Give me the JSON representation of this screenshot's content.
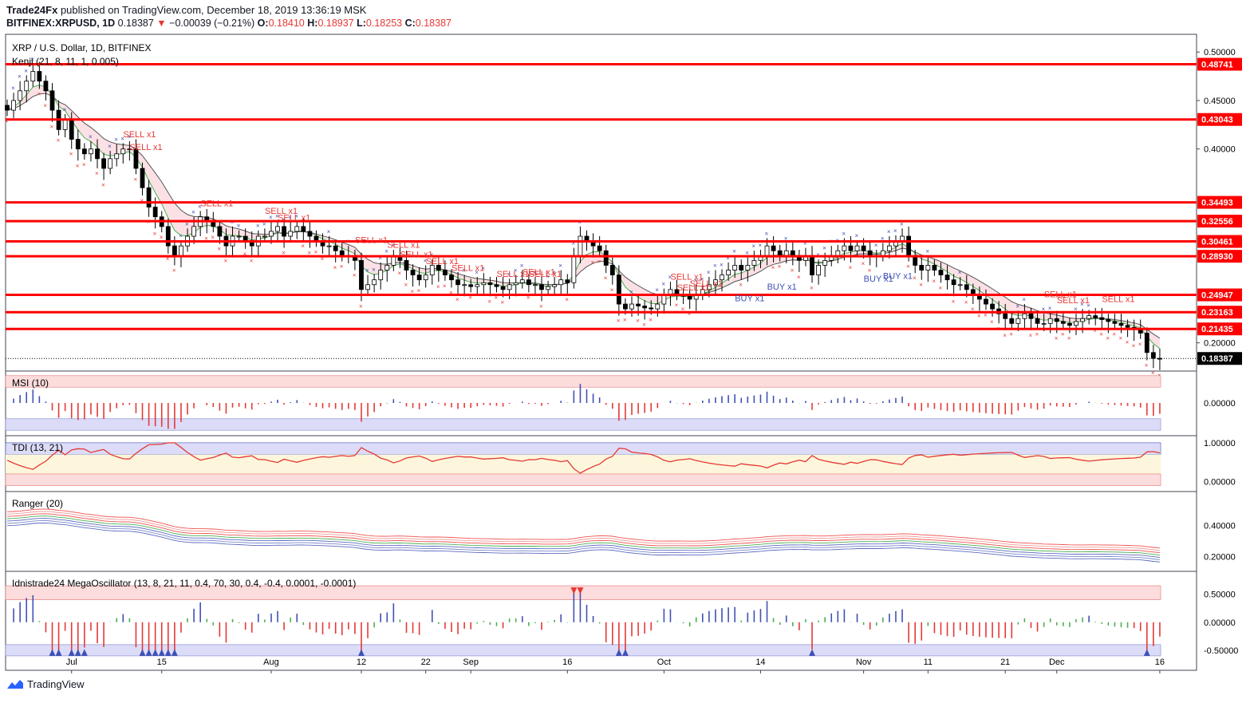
{
  "header": {
    "publisher": "Trade24Fx",
    "published_text": "published on TradingView.com, December 18, 2019 13:36:19 MSK",
    "symbol": "BITFINEX:XRPUSD, 1D",
    "last": "0.18387",
    "change": "−0.00039 (−0.21%)",
    "o_label": "O:",
    "o": "0.18410",
    "h_label": "H:",
    "h": "0.18937",
    "l_label": "L:",
    "l": "0.18253",
    "c_label": "C:",
    "c": "0.18387"
  },
  "footer": {
    "brand": "TradingView"
  },
  "colors": {
    "level": "#ff0000",
    "bull": "#ffffff",
    "bear": "#000000",
    "sell": "#e53935",
    "buy": "#3f51b5"
  },
  "chart_data": [
    {
      "type": "candlestick",
      "title": "XRP / U.S. Dollar, 1D, BITFINEX",
      "indicator": "Kenji (21, 8, 11, 1, 0.005)",
      "ylim": [
        0.175,
        0.515
      ],
      "yticks": [
        "0.50000",
        "0.45000",
        "0.40000",
        "0.20000"
      ],
      "last_price": 0.18387,
      "x_tick_labels": [
        "Jul",
        "15",
        "Aug",
        "12",
        "22",
        "Sep",
        "16",
        "Oct",
        "14",
        "Nov",
        "11",
        "21",
        "Dec",
        "16"
      ],
      "x_tick_days": [
        10,
        24,
        41,
        55,
        65,
        72,
        87,
        102,
        117,
        133,
        143,
        155,
        163,
        179
      ],
      "levels": [
        0.48741,
        0.43043,
        0.34493,
        0.32556,
        0.30461,
        0.2893,
        0.24947,
        0.23163,
        0.21435
      ],
      "level_labels": [
        "0.48741",
        "0.43043",
        "0.34493",
        "0.32556",
        "0.30461",
        "0.28930",
        "0.24947",
        "0.23163",
        "0.21435",
        "0.18387"
      ],
      "signals": [
        {
          "label": "SELL x1",
          "day": 19,
          "price": 0.412
        },
        {
          "label": "SELL x1",
          "day": 20,
          "price": 0.399
        },
        {
          "label": "SELL x1",
          "day": 31,
          "price": 0.341
        },
        {
          "label": "SELL x1",
          "day": 41,
          "price": 0.333
        },
        {
          "label": "SELL x1",
          "day": 43,
          "price": 0.326
        },
        {
          "label": "SELL x1",
          "day": 55,
          "price": 0.303
        },
        {
          "label": "SELL x1",
          "day": 60,
          "price": 0.298
        },
        {
          "label": "SELL x1",
          "day": 62,
          "price": 0.288
        },
        {
          "label": "SELL x1",
          "day": 66,
          "price": 0.281
        },
        {
          "label": "SELL x1",
          "day": 70,
          "price": 0.274
        },
        {
          "label": "SELL x1",
          "day": 77,
          "price": 0.268
        },
        {
          "label": "SELL x1",
          "day": 81,
          "price": 0.27
        },
        {
          "label": "SELL x1",
          "day": 82,
          "price": 0.268
        },
        {
          "label": "SELL x1",
          "day": 104,
          "price": 0.265
        },
        {
          "label": "SELL x1",
          "day": 105,
          "price": 0.254
        },
        {
          "label": "SELL x1",
          "day": 107,
          "price": 0.258
        },
        {
          "label": "BUY x1",
          "day": 114,
          "price": 0.243
        },
        {
          "label": "BUY x1",
          "day": 119,
          "price": 0.255
        },
        {
          "label": "BUY x1",
          "day": 134,
          "price": 0.263
        },
        {
          "label": "BUY x1",
          "day": 137,
          "price": 0.266
        },
        {
          "label": "SELL x1",
          "day": 162,
          "price": 0.247
        },
        {
          "label": "SELL x1",
          "day": 164,
          "price": 0.241
        },
        {
          "label": "SELL x1",
          "day": 171,
          "price": 0.242
        }
      ],
      "close_series": [
        0.44,
        0.45,
        0.46,
        0.47,
        0.48,
        0.47,
        0.46,
        0.44,
        0.42,
        0.43,
        0.41,
        0.4,
        0.395,
        0.4,
        0.39,
        0.38,
        0.39,
        0.395,
        0.4,
        0.4,
        0.38,
        0.36,
        0.34,
        0.33,
        0.32,
        0.3,
        0.29,
        0.3,
        0.31,
        0.32,
        0.33,
        0.325,
        0.32,
        0.31,
        0.3,
        0.31,
        0.31,
        0.305,
        0.3,
        0.31,
        0.31,
        0.315,
        0.32,
        0.31,
        0.315,
        0.32,
        0.315,
        0.31,
        0.305,
        0.3,
        0.3,
        0.295,
        0.29,
        0.29,
        0.285,
        0.255,
        0.26,
        0.265,
        0.275,
        0.28,
        0.29,
        0.285,
        0.275,
        0.27,
        0.265,
        0.27,
        0.28,
        0.275,
        0.27,
        0.265,
        0.26,
        0.26,
        0.258,
        0.26,
        0.262,
        0.26,
        0.258,
        0.255,
        0.26,
        0.262,
        0.265,
        0.26,
        0.26,
        0.255,
        0.258,
        0.26,
        0.265,
        0.262,
        0.29,
        0.31,
        0.305,
        0.3,
        0.295,
        0.28,
        0.27,
        0.24,
        0.235,
        0.24,
        0.238,
        0.236,
        0.235,
        0.24,
        0.25,
        0.255,
        0.25,
        0.248,
        0.245,
        0.25,
        0.255,
        0.26,
        0.265,
        0.27,
        0.275,
        0.28,
        0.275,
        0.28,
        0.285,
        0.29,
        0.3,
        0.295,
        0.29,
        0.295,
        0.29,
        0.285,
        0.29,
        0.27,
        0.28,
        0.285,
        0.29,
        0.295,
        0.3,
        0.295,
        0.3,
        0.295,
        0.29,
        0.29,
        0.295,
        0.3,
        0.305,
        0.31,
        0.29,
        0.28,
        0.275,
        0.28,
        0.275,
        0.27,
        0.265,
        0.26,
        0.26,
        0.255,
        0.25,
        0.245,
        0.24,
        0.235,
        0.23,
        0.225,
        0.22,
        0.225,
        0.23,
        0.225,
        0.22,
        0.22,
        0.225,
        0.222,
        0.22,
        0.218,
        0.222,
        0.225,
        0.228,
        0.226,
        0.224,
        0.222,
        0.22,
        0.218,
        0.216,
        0.214,
        0.21,
        0.19,
        0.184,
        0.18387
      ]
    },
    {
      "type": "bar",
      "title": "MSI (10)",
      "yticks": [
        "0.00000"
      ],
      "ylim": [
        -1,
        1
      ]
    },
    {
      "type": "line",
      "title": "TDI (13, 21)",
      "yticks": [
        "1.00000",
        "0.00000"
      ],
      "ylim": [
        -0.15,
        1.1
      ]
    },
    {
      "type": "line",
      "title": "Ranger (20)",
      "yticks": [
        "0.40000",
        "0.20000"
      ],
      "ylim": [
        0.13,
        0.6
      ]
    },
    {
      "type": "bar",
      "title": "Idnistrade24 MegaOscillator (13, 8, 21, 11, 0.4, 70, 30, 0.4, -0.4, 0.0001, -0.0001)",
      "yticks": [
        "0.50000",
        "0.00000",
        "-0.50000"
      ],
      "ylim": [
        -0.8,
        0.85
      ]
    }
  ]
}
